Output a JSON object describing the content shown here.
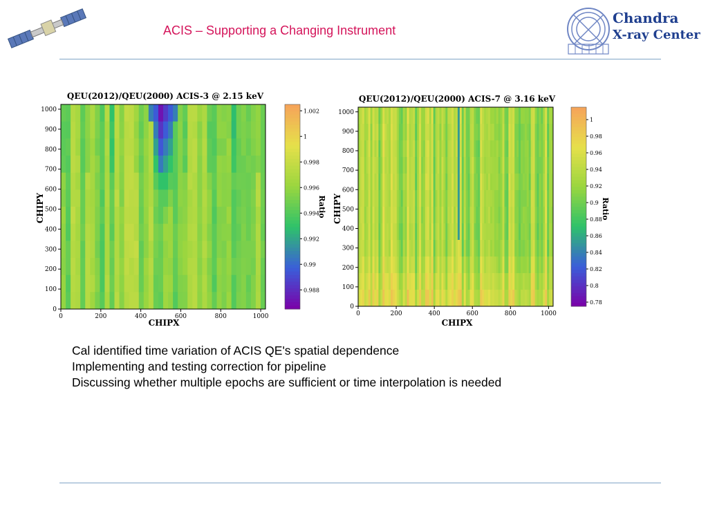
{
  "header": {
    "title": "ACIS – Supporting a Changing Instrument",
    "logo_line1": "Chandra",
    "logo_line2": "X-ray Center"
  },
  "bullets": [
    "Cal identified time variation of ACIS QE's spatial dependence",
    "Implementing and testing correction for pipeline",
    "Discussing whether multiple epochs are sufficient or time interpolation is needed"
  ],
  "chart_data": [
    {
      "type": "heatmap",
      "title": "QEU(2012)/QEU(2000) ACIS-3 @ 2.15 keV",
      "xlabel": "CHIPX",
      "ylabel": "CHIPY",
      "xlim": [
        0,
        1024
      ],
      "ylim": [
        0,
        1024
      ],
      "x_ticks": [
        0,
        200,
        400,
        600,
        800,
        1000
      ],
      "y_ticks": [
        0,
        100,
        200,
        300,
        400,
        500,
        600,
        700,
        800,
        900,
        1000
      ],
      "colorbar_label": "Ratio",
      "colorbar_range": [
        0.9865,
        1.0025
      ],
      "colorbar_ticks": [
        "1.002",
        "1",
        "0.998",
        "0.996",
        "0.994",
        "0.992",
        "0.99",
        "0.988"
      ],
      "colormap": [
        "#7b00a8",
        "#3a5fd9",
        "#2ec26a",
        "#9bd63f",
        "#e6e04a",
        "#f6a25a"
      ]
    },
    {
      "type": "heatmap",
      "title": "QEU(2012)/QEU(2000) ACIS-7 @ 3.16 keV",
      "xlabel": "CHIPX",
      "ylabel": "CHIPY",
      "xlim": [
        0,
        1024
      ],
      "ylim": [
        0,
        1024
      ],
      "x_ticks": [
        0,
        200,
        400,
        600,
        800,
        1000
      ],
      "y_ticks": [
        0,
        100,
        200,
        300,
        400,
        500,
        600,
        700,
        800,
        900,
        1000
      ],
      "colorbar_label": "Ratio",
      "colorbar_range": [
        0.775,
        1.015
      ],
      "colorbar_ticks": [
        "1",
        "0.98",
        "0.96",
        "0.94",
        "0.92",
        "0.9",
        "0.88",
        "0.86",
        "0.84",
        "0.82",
        "0.8",
        "0.78"
      ],
      "colormap": [
        "#7b00a8",
        "#3a5fd9",
        "#2ec26a",
        "#9bd63f",
        "#e6e04a",
        "#f6a25a"
      ]
    }
  ]
}
